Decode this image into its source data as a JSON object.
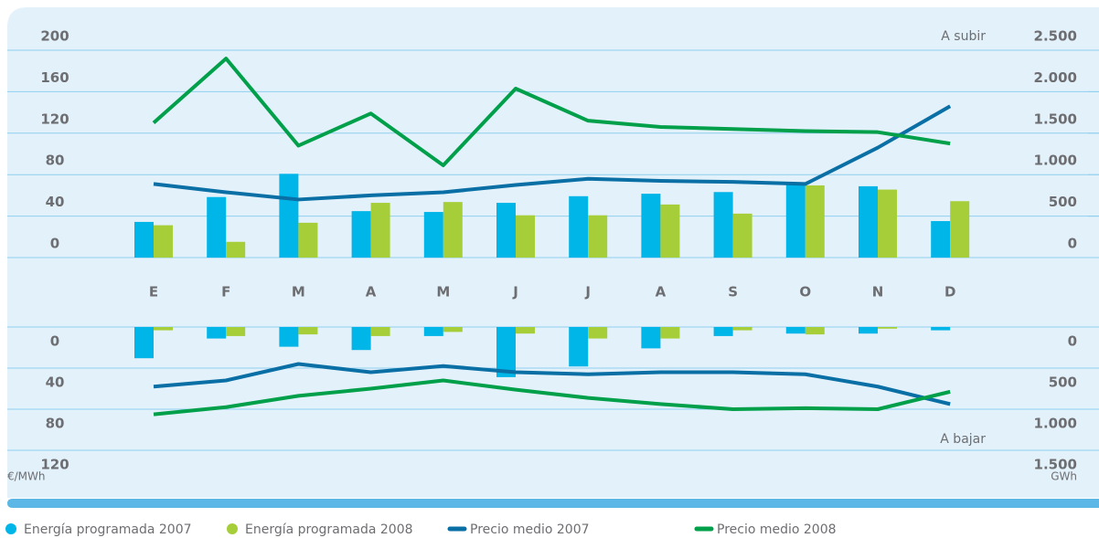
{
  "chart_data": [
    {
      "type": "bar",
      "annotation": "A subir",
      "categories": [
        "E",
        "F",
        "M",
        "A",
        "M",
        "J",
        "J",
        "A",
        "S",
        "O",
        "N",
        "D"
      ],
      "ylim": [
        0,
        200
      ],
      "yticks": [
        0,
        40,
        80,
        120,
        160,
        200
      ],
      "y2lim": [
        0,
        2500
      ],
      "y2ticks": [
        0,
        {
          "value": 500,
          "label": "500"
        },
        {
          "value": 1000,
          "label": "1.000"
        },
        {
          "value": 1500,
          "label": "1.500"
        },
        {
          "value": 2000,
          "label": "2.000"
        },
        {
          "value": 2500,
          "label": "2.500"
        }
      ],
      "inverted": false,
      "grid": true,
      "series": [
        {
          "name": "Energía programada 2007",
          "type": "bar",
          "axis": "y2",
          "color": "#00b5e7",
          "values": [
            430,
            730,
            1010,
            560,
            550,
            660,
            740,
            770,
            790,
            890,
            860,
            440
          ]
        },
        {
          "name": "Energía programada 2008",
          "type": "bar",
          "axis": "y2",
          "color": "#a6ce39",
          "values": [
            390,
            190,
            420,
            660,
            670,
            510,
            510,
            640,
            530,
            870,
            820,
            680
          ]
        },
        {
          "name": "Precio medio 2007",
          "type": "line",
          "color": "#0a6fa5",
          "values": [
            71,
            63,
            56,
            60,
            63,
            70,
            76,
            74,
            73,
            71,
            106,
            146
          ]
        },
        {
          "name": "Precio medio 2008",
          "type": "line",
          "color": "#00a04b",
          "values": [
            130,
            192,
            108,
            139,
            89,
            163,
            132,
            126,
            124,
            122,
            121,
            110
          ]
        }
      ]
    },
    {
      "type": "bar",
      "annotation": "A bajar",
      "y_label": "€/MWh",
      "y2_label": "GWh",
      "ylim": [
        0,
        120
      ],
      "yticks": [
        0,
        40,
        80,
        120
      ],
      "y2lim": [
        0,
        1500
      ],
      "y2ticks": [
        0,
        500,
        {
          "value": 1000,
          "label": "1.000"
        },
        {
          "value": 1500,
          "label": "1.500"
        }
      ],
      "inverted": true,
      "grid": true,
      "series": [
        {
          "type": "bar",
          "axis": "y2",
          "color": "#00b5e7",
          "values": [
            380,
            140,
            240,
            280,
            110,
            610,
            480,
            260,
            110,
            80,
            80,
            40
          ]
        },
        {
          "type": "bar",
          "axis": "y2",
          "color": "#a6ce39",
          "values": [
            40,
            110,
            90,
            110,
            60,
            80,
            140,
            140,
            40,
            90,
            20,
            0
          ]
        },
        {
          "type": "line",
          "color": "#0a6fa5",
          "values": [
            58,
            52,
            36,
            44,
            38,
            44,
            46,
            44,
            44,
            46,
            58,
            75
          ]
        },
        {
          "type": "line",
          "color": "#00a04b",
          "values": [
            85,
            78,
            67,
            60,
            52,
            61,
            69,
            75,
            80,
            79,
            80,
            63
          ]
        }
      ]
    }
  ]
}
